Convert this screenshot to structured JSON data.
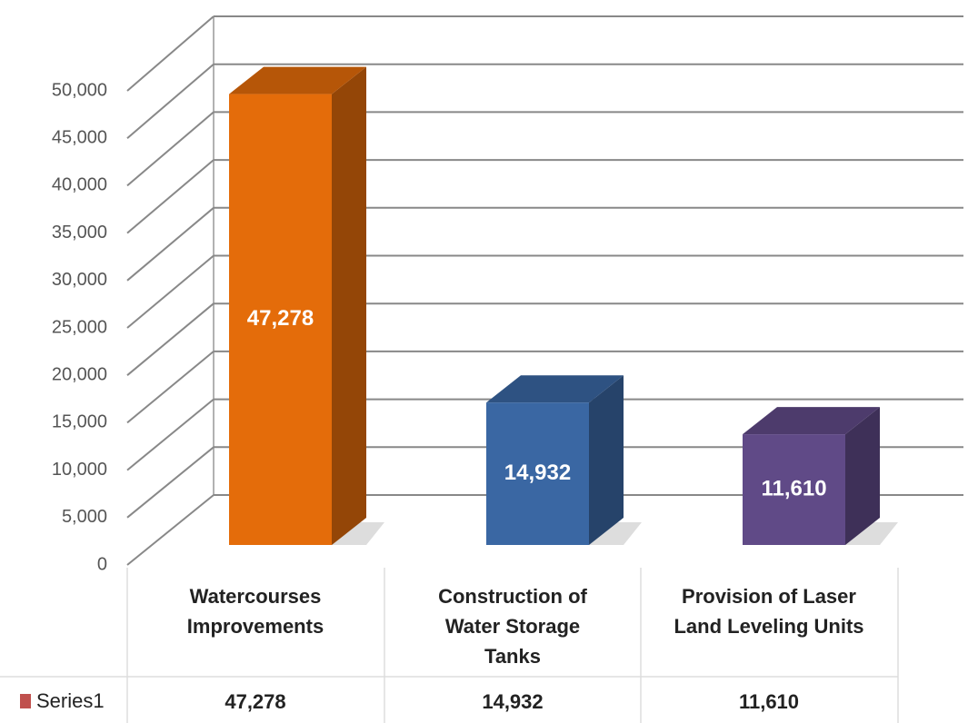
{
  "chart_data": {
    "type": "bar3d",
    "categories": [
      "Watercourses\nImprovements",
      "Construction of\nWater Storage\nTanks",
      "Provision of Laser\nLand Leveling Units"
    ],
    "series": [
      {
        "name": "Series1",
        "color": "#c0504d",
        "values": [
          47278,
          14932,
          11610
        ],
        "value_labels": [
          "47,278",
          "14,932",
          "11,610"
        ],
        "colors": [
          "#e46c0a",
          "#3a67a3",
          "#604a87"
        ]
      }
    ],
    "ylim": [
      0,
      50000
    ],
    "yticks": [
      0,
      {
        "value": 5000,
        "label": "5,000"
      },
      {
        "value": 10000,
        "label": "10,000"
      },
      {
        "value": 15000,
        "label": "15,000"
      },
      {
        "value": 20000,
        "label": "20,000"
      },
      {
        "value": 25000,
        "label": "25,000"
      },
      {
        "value": 30000,
        "label": "30,000"
      },
      {
        "value": 35000,
        "label": "35,000"
      },
      {
        "value": 40000,
        "label": "40,000"
      },
      {
        "value": 45000,
        "label": "45,000"
      },
      {
        "value": 50000,
        "label": "50,000"
      }
    ],
    "grid": true,
    "data_table": true
  }
}
